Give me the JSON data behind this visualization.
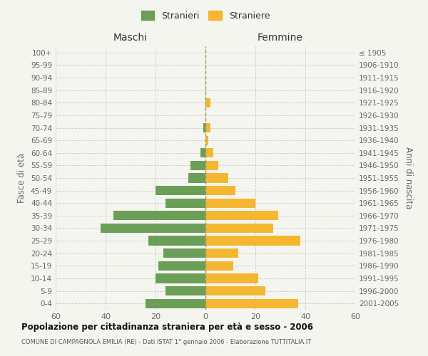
{
  "age_groups": [
    "0-4",
    "5-9",
    "10-14",
    "15-19",
    "20-24",
    "25-29",
    "30-34",
    "35-39",
    "40-44",
    "45-49",
    "50-54",
    "55-59",
    "60-64",
    "65-69",
    "70-74",
    "75-79",
    "80-84",
    "85-89",
    "90-94",
    "95-99",
    "100+"
  ],
  "birth_years": [
    "2001-2005",
    "1996-2000",
    "1991-1995",
    "1986-1990",
    "1981-1985",
    "1976-1980",
    "1971-1975",
    "1966-1970",
    "1961-1965",
    "1956-1960",
    "1951-1955",
    "1946-1950",
    "1941-1945",
    "1936-1940",
    "1931-1935",
    "1926-1930",
    "1921-1925",
    "1916-1920",
    "1911-1915",
    "1906-1910",
    "≤ 1905"
  ],
  "maschi": [
    24,
    16,
    20,
    19,
    17,
    23,
    42,
    37,
    16,
    20,
    7,
    6,
    2,
    0,
    1,
    0,
    0,
    0,
    0,
    0,
    0
  ],
  "femmine": [
    37,
    24,
    21,
    11,
    13,
    38,
    27,
    29,
    20,
    12,
    9,
    5,
    3,
    1,
    2,
    0,
    2,
    0,
    0,
    0,
    0
  ],
  "maschi_color": "#6b9e57",
  "femmine_color": "#f5b731",
  "background_color": "#f5f5ef",
  "grid_color": "#cccccc",
  "xlim": 60,
  "title": "Popolazione per cittadinanza straniera per età e sesso - 2006",
  "subtitle": "COMUNE DI CAMPAGNOLA EMILIA (RE) - Dati ISTAT 1° gennaio 2006 - Elaborazione TUTTITALIA.IT",
  "ylabel_left": "Fasce di età",
  "ylabel_right": "Anni di nascita",
  "xlabel_left": "Maschi",
  "xlabel_right": "Femmine",
  "legend_stranieri": "Stranieri",
  "legend_straniere": "Straniere"
}
